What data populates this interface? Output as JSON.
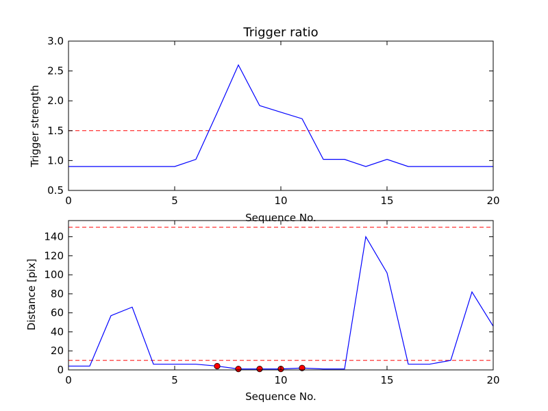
{
  "chart_data": [
    {
      "type": "line",
      "title": "Trigger ratio",
      "xlabel": "Sequence No.",
      "ylabel": "Trigger strength",
      "xlim": [
        0,
        20
      ],
      "ylim": [
        0.5,
        3.0
      ],
      "xticks": [
        0,
        5,
        10,
        15,
        20
      ],
      "yticks": [
        "0.5",
        "1.0",
        "1.5",
        "2.0",
        "2.5",
        "3.0"
      ],
      "grid": false,
      "series": [
        {
          "color": "#0000ff",
          "x": [
            0,
            1,
            2,
            3,
            4,
            5,
            6,
            7,
            8,
            9,
            10,
            11,
            12,
            13,
            14,
            15,
            16,
            17,
            18,
            19,
            20
          ],
          "y": [
            0.9,
            0.9,
            0.9,
            0.9,
            0.9,
            0.9,
            1.02,
            1.8,
            2.6,
            1.92,
            1.81,
            1.7,
            1.02,
            1.02,
            0.9,
            1.02,
            0.9,
            0.9,
            0.9,
            0.9,
            0.9
          ]
        }
      ],
      "threshold_lines": [
        {
          "y": 1.5,
          "color": "#ff0000",
          "style": "dashed"
        }
      ]
    },
    {
      "type": "line",
      "title": "",
      "xlabel": "Sequence No.",
      "ylabel": "Distance [pix]",
      "xlim": [
        0,
        20
      ],
      "ylim": [
        0,
        157
      ],
      "xticks": [
        0,
        5,
        10,
        15,
        20
      ],
      "yticks": [
        "0",
        "20",
        "40",
        "60",
        "80",
        "100",
        "120",
        "140"
      ],
      "grid": false,
      "series": [
        {
          "color": "#0000ff",
          "x": [
            0,
            1,
            2,
            3,
            4,
            5,
            6,
            7,
            8,
            9,
            10,
            11,
            12,
            13,
            14,
            15,
            16,
            17,
            18,
            19,
            20
          ],
          "y": [
            4,
            4,
            57,
            66,
            6,
            6,
            6,
            4,
            1,
            1,
            1,
            2,
            1,
            1,
            140,
            102,
            6,
            6,
            10,
            82,
            46
          ]
        }
      ],
      "markers": {
        "color": "#ff0000",
        "x": [
          7,
          8,
          9,
          10,
          11
        ],
        "y": [
          4,
          1,
          1,
          1,
          2
        ]
      },
      "threshold_lines": [
        {
          "y": 150,
          "color": "#ff0000",
          "style": "dashed"
        },
        {
          "y": 10,
          "color": "#ff0000",
          "style": "dashed"
        }
      ]
    }
  ]
}
